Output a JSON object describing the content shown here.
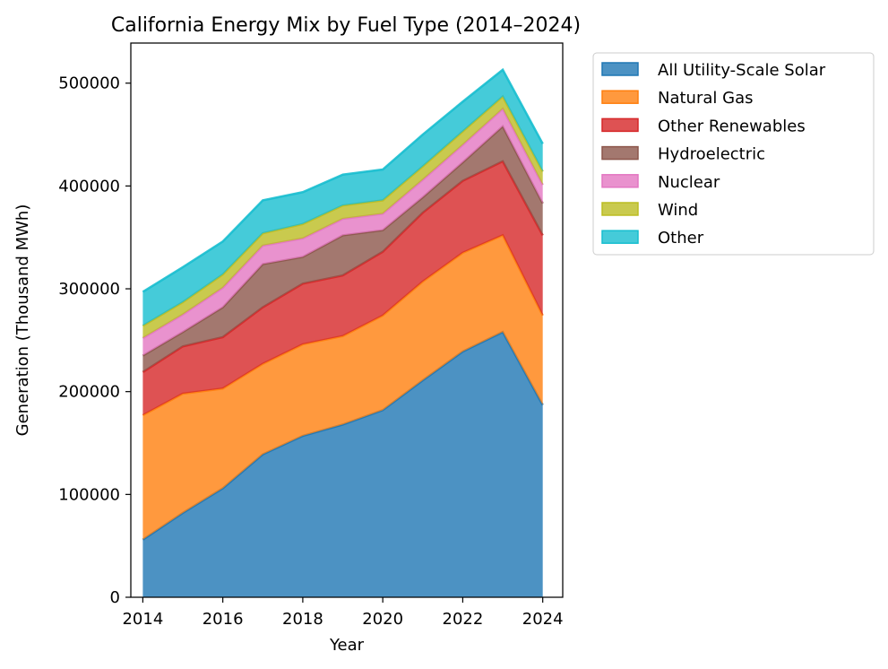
{
  "chart_data": {
    "type": "area",
    "stacked": true,
    "title": "California Energy Mix by Fuel Type (2014–2024)",
    "xlabel": "Year",
    "ylabel": "Generation (Thousand MWh)",
    "x": [
      2014,
      2015,
      2016,
      2017,
      2018,
      2019,
      2020,
      2021,
      2022,
      2023,
      2024
    ],
    "xticks": [
      "2014",
      "2016",
      "2018",
      "2020",
      "2022",
      "2024"
    ],
    "yticks": [
      "0",
      "100000",
      "200000",
      "300000",
      "400000",
      "500000"
    ],
    "xlim": [
      2013.7,
      2024.5
    ],
    "ylim": [
      0,
      539000
    ],
    "grid": false,
    "legend_position": "outside-top-right",
    "series": [
      {
        "name": "All Utility-Scale Solar",
        "color": "#1f77b4",
        "values": [
          56000,
          82000,
          106000,
          139000,
          157000,
          168000,
          182000,
          211000,
          239000,
          258000,
          187000
        ]
      },
      {
        "name": "Natural Gas",
        "color": "#ff7f0e",
        "values": [
          121000,
          116000,
          97000,
          88000,
          89000,
          86000,
          92000,
          96000,
          96000,
          94000,
          87000
        ]
      },
      {
        "name": "Other Renewables",
        "color": "#d62728",
        "values": [
          42000,
          46000,
          50000,
          55000,
          59000,
          59000,
          62000,
          67000,
          70000,
          72000,
          78000
        ]
      },
      {
        "name": "Hydroelectric",
        "color": "#8c564b",
        "values": [
          16000,
          14000,
          29000,
          42000,
          26000,
          39000,
          21000,
          15000,
          18000,
          34000,
          31000
        ]
      },
      {
        "name": "Nuclear",
        "color": "#e377c2",
        "values": [
          17000,
          17000,
          19000,
          18000,
          18000,
          16000,
          16000,
          17000,
          17000,
          17000,
          18000
        ]
      },
      {
        "name": "Wind",
        "color": "#bcbd22",
        "values": [
          12000,
          12000,
          13000,
          12000,
          14000,
          13000,
          13000,
          13000,
          13000,
          12000,
          13000
        ]
      },
      {
        "name": "Other",
        "color": "#17becf",
        "values": [
          33000,
          34000,
          32000,
          32000,
          31000,
          30000,
          30000,
          31000,
          29000,
          26000,
          27000
        ]
      }
    ]
  }
}
